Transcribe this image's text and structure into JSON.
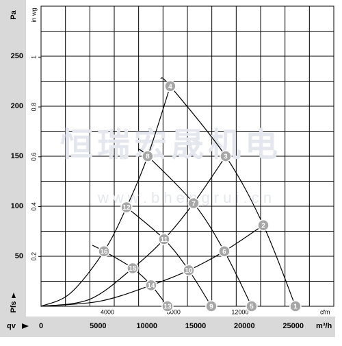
{
  "chart_data": {
    "type": "line",
    "y_label": "Pa",
    "y2_label": "in wg",
    "y_symbol": "Pfs",
    "x_symbol": "qv",
    "x_label": "m³/h",
    "x2_label": "cfm",
    "watermark": "恒瑞宏晟机电",
    "watermark_url": "w w w . b h e n g r u i . c n",
    "xlim": [
      0,
      30000
    ],
    "ylim": [
      0,
      300
    ],
    "y2lim": [
      0,
      1.2044
    ],
    "x2lim": [
      0,
      17657
    ],
    "xticks": [
      0,
      5000,
      10000,
      15000,
      20000,
      25000
    ],
    "yticks": [
      50,
      100,
      150,
      200,
      250
    ],
    "y2ticks": [
      0.2,
      0.4,
      0.6,
      0.8,
      1
    ],
    "x2ticks": [
      4000,
      8000,
      12000
    ],
    "xgrid": [
      0,
      2500,
      5000,
      7500,
      10000,
      12500,
      15000,
      17500,
      20000,
      22500,
      25000,
      27500,
      30000
    ],
    "ygrid": [
      0,
      25,
      50,
      75,
      100,
      125,
      150,
      175,
      200,
      225,
      250,
      275,
      300
    ],
    "color": "#000000",
    "series": [
      {
        "x": [
          12260,
          13240,
          18920,
          22780,
          26070
        ],
        "values": [
          228,
          220,
          150,
          81,
          0
        ],
        "point_labels": [
          null,
          "4",
          "3",
          "2",
          "1"
        ]
      },
      {
        "x": [
          9950,
          10930,
          15630,
          18780,
          21580
        ],
        "values": [
          157,
          150,
          103,
          55,
          0
        ],
        "point_labels": [
          null,
          "8",
          "7",
          "6",
          "5"
        ]
      },
      {
        "x": [
          8340,
          8760,
          12610,
          15140,
          17450
        ],
        "values": [
          102,
          99,
          67,
          36,
          0
        ],
        "point_labels": [
          null,
          "12",
          "11",
          "10",
          "9"
        ]
      },
      {
        "x": [
          5260,
          6450,
          9390,
          11280,
          12960
        ],
        "values": [
          61,
          55,
          38,
          21,
          0
        ],
        "point_labels": [
          null,
          "16",
          "15",
          "14",
          "13"
        ]
      },
      {
        "x": [
          0,
          3000,
          6450,
          8760,
          10930,
          13240
        ],
        "values": [
          0,
          13,
          55,
          99,
          150,
          220
        ]
      },
      {
        "x": [
          0,
          5000,
          9390,
          12610,
          15630,
          18920
        ],
        "values": [
          0,
          7,
          38,
          67,
          103,
          150
        ]
      },
      {
        "x": [
          0,
          6000,
          11280,
          15140,
          18780,
          22780
        ],
        "values": [
          0,
          5,
          21,
          36,
          55,
          81
        ]
      }
    ]
  }
}
